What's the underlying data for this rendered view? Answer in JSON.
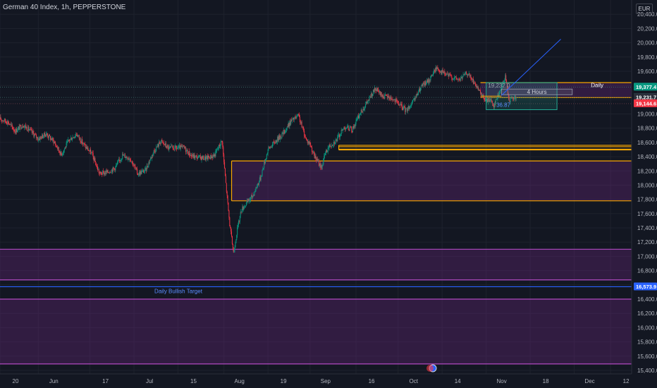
{
  "header": {
    "title": "German 40 Index, 1h, PEPPERSTONE",
    "currency": "EUR"
  },
  "chart_data": {
    "type": "candlestick",
    "yaxis": {
      "ticks": [
        15400,
        15600,
        15800,
        16000,
        16200,
        16400,
        16600,
        16800,
        17000,
        17200,
        17400,
        17600,
        17800,
        18000,
        18200,
        18400,
        18600,
        18800,
        19000,
        19200,
        19400,
        19600,
        19800,
        20000,
        20200,
        20400
      ],
      "tick_labels": [
        "15,400.0",
        "15,600.0",
        "15,800.0",
        "16,000.0",
        "16,200.0",
        "16,400.0",
        "16,600.0",
        "16,800.0",
        "17,000.0",
        "17,200.0",
        "17,400.0",
        "17,600.0",
        "17,800.0",
        "18,000.0",
        "18,200.0",
        "18,400.0",
        "18,600.0",
        "18,800.0",
        "19,000.0",
        "19,200.0",
        "19,400.0",
        "19,600.0",
        "19,800.0",
        "20,000.0",
        "20,200.0",
        "20,400.0"
      ],
      "range": [
        15350,
        20600
      ]
    },
    "xaxis": {
      "labels": [
        "20",
        "Jun",
        "17",
        "Jul",
        "15",
        "Aug",
        "19",
        "Sep",
        "16",
        "Oct",
        "14",
        "Nov",
        "18",
        "Dec",
        "12"
      ],
      "label_index": [
        0,
        20,
        47,
        70,
        93,
        117,
        140,
        162,
        186,
        208,
        231,
        254,
        277,
        300,
        319
      ]
    },
    "price_path": [
      [
        0,
        18930
      ],
      [
        4,
        18890
      ],
      [
        8,
        18760
      ],
      [
        12,
        18850
      ],
      [
        16,
        18760
      ],
      [
        20,
        18650
      ],
      [
        24,
        18720
      ],
      [
        28,
        18620
      ],
      [
        32,
        18430
      ],
      [
        36,
        18630
      ],
      [
        40,
        18720
      ],
      [
        44,
        18560
      ],
      [
        48,
        18440
      ],
      [
        52,
        18160
      ],
      [
        56,
        18180
      ],
      [
        60,
        18240
      ],
      [
        64,
        18420
      ],
      [
        68,
        18380
      ],
      [
        72,
        18160
      ],
      [
        76,
        18210
      ],
      [
        80,
        18460
      ],
      [
        84,
        18620
      ],
      [
        88,
        18520
      ],
      [
        92,
        18520
      ],
      [
        96,
        18530
      ],
      [
        100,
        18410
      ],
      [
        104,
        18390
      ],
      [
        108,
        18380
      ],
      [
        112,
        18420
      ],
      [
        116,
        18630
      ],
      [
        118,
        18020
      ],
      [
        120,
        17450
      ],
      [
        122,
        17050
      ],
      [
        124,
        17380
      ],
      [
        126,
        17650
      ],
      [
        128,
        17720
      ],
      [
        132,
        17850
      ],
      [
        136,
        18100
      ],
      [
        140,
        18500
      ],
      [
        144,
        18620
      ],
      [
        148,
        18730
      ],
      [
        152,
        18900
      ],
      [
        156,
        18970
      ],
      [
        158,
        18800
      ],
      [
        160,
        18640
      ],
      [
        162,
        18580
      ],
      [
        164,
        18420
      ],
      [
        166,
        18330
      ],
      [
        168,
        18250
      ],
      [
        170,
        18450
      ],
      [
        172,
        18550
      ],
      [
        176,
        18640
      ],
      [
        180,
        18820
      ],
      [
        184,
        18780
      ],
      [
        188,
        19000
      ],
      [
        192,
        19170
      ],
      [
        196,
        19350
      ],
      [
        200,
        19250
      ],
      [
        204,
        19230
      ],
      [
        208,
        19150
      ],
      [
        212,
        19050
      ],
      [
        216,
        19170
      ],
      [
        220,
        19380
      ],
      [
        224,
        19470
      ],
      [
        228,
        19650
      ],
      [
        232,
        19570
      ],
      [
        236,
        19520
      ],
      [
        240,
        19480
      ],
      [
        244,
        19580
      ],
      [
        248,
        19430
      ],
      [
        250,
        19320
      ],
      [
        252,
        19250
      ],
      [
        254,
        19180
      ],
      [
        256,
        19210
      ],
      [
        258,
        19120
      ],
      [
        260,
        19250
      ],
      [
        262,
        19380
      ],
      [
        264,
        19520
      ],
      [
        266,
        19200
      ],
      [
        268,
        19210
      ],
      [
        270,
        19235
      ]
    ],
    "bars": 270,
    "random_seed": 17
  },
  "levels": {
    "current_price": 19232.0,
    "price_badges": [
      {
        "value": 19377.4,
        "label": "19,377.4",
        "color": "#089981"
      },
      {
        "value": 19232.0,
        "label": "19,232.0",
        "color": "#089981"
      },
      {
        "value": 19231.7,
        "label": "19,231.7",
        "color": "#2a2e39"
      },
      {
        "value": 19144.6,
        "label": "19,144.6",
        "color": "#f23645"
      },
      {
        "value": 16573.9,
        "label": "16,573.9",
        "color": "#2962ff"
      }
    ],
    "target_line": 16573.9
  },
  "zones": [
    {
      "name": "daily-zone",
      "x1": 251,
      "x2": 330,
      "top": 19440,
      "bottom": 19230,
      "fill": "rgba(120,40,140,0.30)",
      "border": "#f7a600",
      "label": "Daily",
      "label_x": 312,
      "label_color": "#ffffff"
    },
    {
      "name": "fvg-zone",
      "x1": 121,
      "x2": 330,
      "top": 18340,
      "bottom": 17780,
      "fill": "rgba(120,40,140,0.30)",
      "border": "#f7a600",
      "border_bottom": "#f7a600"
    },
    {
      "name": "orange-band-1",
      "x1": 177,
      "x2": 330,
      "top": 18560,
      "bottom": 18540,
      "fill": "none",
      "border": "#f7a600"
    },
    {
      "name": "orange-band-2",
      "x1": 177,
      "x2": 330,
      "top": 18505,
      "bottom": 18495,
      "fill": "none",
      "border": "#f7a600"
    },
    {
      "name": "lower-zone-1",
      "x1": 0,
      "x2": 330,
      "top": 17100,
      "bottom": 16670,
      "fill": "rgba(120,40,140,0.30)",
      "border": "#b04ac0"
    },
    {
      "name": "lower-zone-2",
      "x1": 0,
      "x2": 330,
      "top": 16400,
      "bottom": 15490,
      "fill": "rgba(120,40,140,0.30)",
      "border": "#b04ac0"
    }
  ],
  "annotations": {
    "target_label": "Daily Bullish Target",
    "hours_label": "4 Hours",
    "measure_text": "36.87",
    "measure_small": "19,232.0"
  },
  "colors": {
    "up": "#089981",
    "down": "#f23645",
    "grid": "#1e222d",
    "projection": "#2962ff",
    "teal_box": "#22ab94"
  }
}
